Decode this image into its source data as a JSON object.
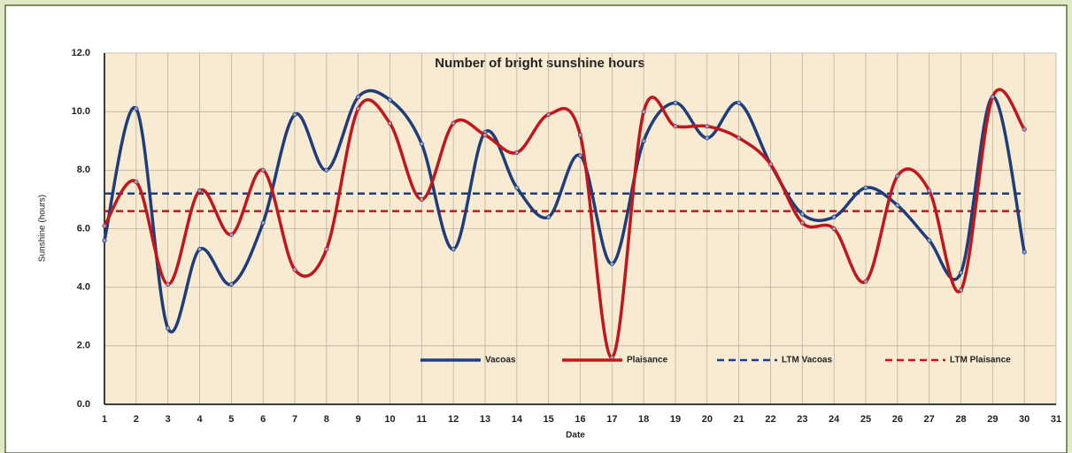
{
  "chart_data": {
    "type": "line",
    "title": "Number of bright sunshine hours",
    "x_label": "Date",
    "y_label": "Sunshine (hours)",
    "x": [
      1,
      2,
      3,
      4,
      5,
      6,
      7,
      8,
      9,
      10,
      11,
      12,
      13,
      14,
      15,
      16,
      17,
      18,
      19,
      20,
      21,
      22,
      23,
      24,
      25,
      26,
      27,
      28,
      29,
      30
    ],
    "series": [
      {
        "name": "Vacoas",
        "color": "#1f3d7a",
        "values": [
          5.6,
          10.1,
          2.6,
          5.3,
          4.1,
          6.2,
          9.9,
          8.0,
          10.5,
          10.4,
          8.9,
          5.3,
          9.3,
          7.4,
          6.4,
          8.5,
          4.8,
          9.0,
          10.3,
          9.1,
          10.3,
          8.2,
          6.5,
          6.4,
          7.4,
          6.8,
          5.6,
          4.5,
          10.5,
          5.2
        ]
      },
      {
        "name": "Plaisance",
        "color": "#c0161c",
        "values": [
          6.1,
          7.6,
          4.1,
          7.3,
          5.8,
          8.0,
          4.6,
          5.3,
          10.1,
          9.6,
          7.0,
          9.6,
          9.2,
          8.6,
          9.9,
          9.2,
          1.6,
          10.0,
          9.5,
          9.5,
          9.1,
          8.2,
          6.2,
          6.0,
          4.2,
          7.8,
          7.3,
          3.9,
          10.5,
          9.4
        ]
      }
    ],
    "reference_lines": [
      {
        "name": "LTM Vacoas",
        "color": "#1f3d7a",
        "value": 7.2
      },
      {
        "name": "LTM Plaisance",
        "color": "#c0161c",
        "value": 6.6
      }
    ],
    "xlim": [
      1,
      31
    ],
    "xticks": [
      1,
      2,
      3,
      4,
      5,
      6,
      7,
      8,
      9,
      10,
      11,
      12,
      13,
      14,
      15,
      16,
      17,
      18,
      19,
      20,
      21,
      22,
      23,
      24,
      25,
      26,
      27,
      28,
      29,
      30,
      31
    ],
    "ylim": [
      0,
      12
    ],
    "yticks": [
      {
        "value": 0,
        "label": "0.0"
      },
      {
        "value": 2,
        "label": "2.0"
      },
      {
        "value": 4,
        "label": "4.0"
      },
      {
        "value": 6,
        "label": "6.0"
      },
      {
        "value": 8,
        "label": "8.0"
      },
      {
        "value": 10,
        "label": "10.0"
      },
      {
        "value": 12,
        "label": "12.0"
      }
    ],
    "grid": true,
    "smooth": true,
    "legend": "bottom-right"
  }
}
